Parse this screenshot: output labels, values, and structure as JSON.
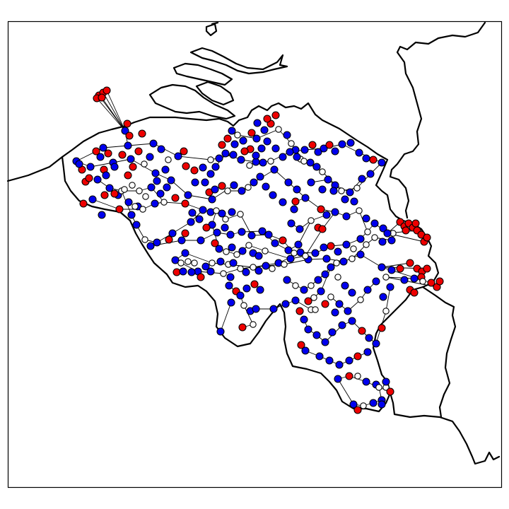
{
  "map": {
    "colors": {
      "background": "#ffffff",
      "frame": "#000000",
      "border": "#000000",
      "edge": "#000000",
      "node_outline": "#000000",
      "bus": "#0000ee",
      "generator": "#ee0000",
      "junction": "#ffffff"
    },
    "node_types": [
      "bus",
      "generator",
      "junction"
    ]
  }
}
